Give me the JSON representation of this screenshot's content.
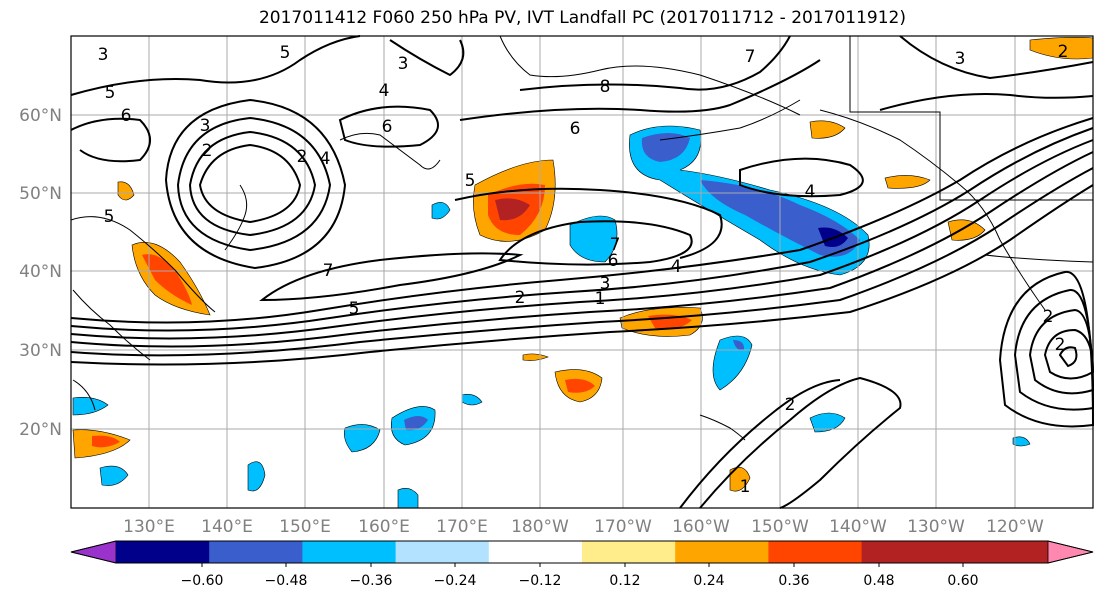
{
  "title": "2017011412 F060 250 hPa PV, IVT Landfall PC (2017011712 - 2017011912)",
  "map": {
    "lon_labels": [
      "130°E",
      "140°E",
      "150°E",
      "160°E",
      "170°E",
      "180°W",
      "170°W",
      "160°W",
      "150°W",
      "140°W",
      "130°W",
      "120°W"
    ],
    "lat_labels": [
      "60°N",
      "50°N",
      "40°N",
      "30°N",
      "20°N"
    ],
    "contour_labels": [
      "3",
      "5",
      "6",
      "5",
      "3",
      "2",
      "2",
      "6",
      "5",
      "4",
      "8",
      "7",
      "6",
      "3",
      "4",
      "5",
      "7",
      "6",
      "4",
      "3",
      "2",
      "1",
      "7",
      "5",
      "4",
      "3",
      "2",
      "1",
      "2",
      "2",
      "2"
    ]
  },
  "colorbar": {
    "tick_labels": [
      "−0.60",
      "−0.48",
      "−0.36",
      "−0.24",
      "−0.12",
      "0.12",
      "0.24",
      "0.36",
      "0.48",
      "0.60"
    ],
    "colors": [
      "#9933cc",
      "#00008b",
      "#3a5fcd",
      "#00bfff",
      "#b2e2ff",
      "#ffffff",
      "#ffec8b",
      "#ffa500",
      "#ff4500",
      "#b22222",
      "#ff88b0"
    ]
  }
}
